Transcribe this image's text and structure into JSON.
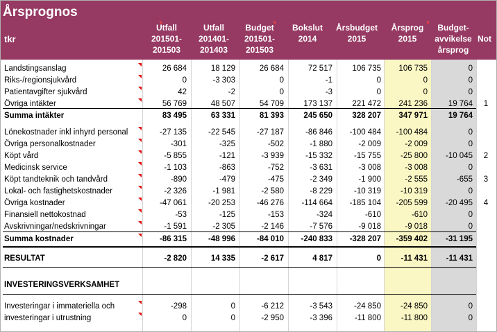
{
  "title": "Årsprognos",
  "unit_label": "tkr",
  "columns": [
    {
      "line1": "Utfall",
      "line2": "201501-",
      "line3": "201503"
    },
    {
      "line1": "Utfall",
      "line2": "201401-",
      "line3": "201403"
    },
    {
      "line1": "Budget",
      "line2": "201501-",
      "line3": "201503"
    },
    {
      "line1": "Bokslut",
      "line2": "2014",
      "line3": ""
    },
    {
      "line1": "Årsbudget",
      "line2": "2015",
      "line3": ""
    },
    {
      "line1": "Årsprog",
      "line2": "2015",
      "line3": ""
    },
    {
      "line1": "Budget-",
      "line2": "avvikelse",
      "line3": "årsprog"
    },
    {
      "line1": "Not",
      "line2": "",
      "line3": ""
    }
  ],
  "rows": [
    {
      "label": "Landstingsanslag",
      "values": [
        "26 684",
        "18 129",
        "26 684",
        "72 517",
        "106 735",
        "106 735",
        "0"
      ],
      "note": ""
    },
    {
      "label": "Riks-/regionsjukvård",
      "values": [
        "0",
        "-3 303",
        "0",
        "-1",
        "0",
        "0",
        "0"
      ],
      "note": ""
    },
    {
      "label": "Patientavgifter sjukvård",
      "values": [
        "42",
        "-2",
        "0",
        "-3",
        "0",
        "0",
        "0"
      ],
      "note": ""
    },
    {
      "label": "Övriga intäkter",
      "values": [
        "56 769",
        "48 507",
        "54 709",
        "173 137",
        "221 472",
        "241 236",
        "19 764"
      ],
      "note": "1"
    },
    {
      "label": "Summa intäkter",
      "values": [
        "83 495",
        "63 331",
        "81 393",
        "245 650",
        "328 207",
        "347 971",
        "19 764"
      ],
      "note": ""
    },
    {
      "label": "Lönekostnader inkl inhyrd personal",
      "values": [
        "-27 135",
        "-22 545",
        "-27 187",
        "-86 846",
        "-100 484",
        "-100 484",
        "0"
      ],
      "note": ""
    },
    {
      "label": "Övriga personalkostnader",
      "values": [
        "-301",
        "-325",
        "-502",
        "-1 880",
        "-2 009",
        "-2 009",
        "0"
      ],
      "note": ""
    },
    {
      "label": "Köpt vård",
      "values": [
        "-5 855",
        "-121",
        "-3 939",
        "-15 332",
        "-15 755",
        "-25 800",
        "-10 045"
      ],
      "note": "2"
    },
    {
      "label": "Medicinsk service",
      "values": [
        "-1 103",
        "-863",
        "-752",
        "-3 631",
        "-3 008",
        "-3 008",
        "0"
      ],
      "note": ""
    },
    {
      "label": "Köpt tandteknik och tandvård",
      "values": [
        "-890",
        "-479",
        "-475",
        "-2 349",
        "-1 900",
        "-2 555",
        "-655"
      ],
      "note": "3"
    },
    {
      "label": "Lokal- och fastighetskostnader",
      "values": [
        "-2 326",
        "-1 981",
        "-2 580",
        "-8 229",
        "-10 319",
        "-10 319",
        "0"
      ],
      "note": ""
    },
    {
      "label": "Övriga kostnader",
      "values": [
        "-47 061",
        "-20 253",
        "-46 276",
        "-114 664",
        "-185 104",
        "-205 599",
        "-20 495"
      ],
      "note": "4"
    },
    {
      "label": "Finansiell nettokostnad",
      "values": [
        "-53",
        "-125",
        "-153",
        "-324",
        "-610",
        "-610",
        "0"
      ],
      "note": ""
    },
    {
      "label": "Avskrivningar/nedskrivningar",
      "values": [
        "-1 591",
        "-2 305",
        "-2 146",
        "-7 576",
        "-9 018",
        "-9 018",
        "0"
      ],
      "note": ""
    },
    {
      "label": "Summa kostnader",
      "values": [
        "-86 315",
        "-48 996",
        "-84 010",
        "-240 833",
        "-328 207",
        "-359 402",
        "-31 195"
      ],
      "note": ""
    },
    {
      "label": "RESULTAT",
      "values": [
        "-2 820",
        "14 335",
        "-2 617",
        "4 817",
        "0",
        "-11 431",
        "-11 431"
      ],
      "note": ""
    },
    {
      "label": "INVESTERINGSVERKSAMHET",
      "values": [
        "",
        "",
        "",
        "",
        "",
        "",
        ""
      ],
      "note": ""
    },
    {
      "label": "Investeringar i immateriella och",
      "values": [
        "-298",
        "0",
        "-6 212",
        "-3 543",
        "-24 850",
        "-24 850",
        "0"
      ],
      "note": ""
    },
    {
      "label": "investeringar i utrustning",
      "values": [
        "0",
        "0",
        "-2 950",
        "-3 396",
        "-11 800",
        "-11 800",
        "0"
      ],
      "note": ""
    }
  ],
  "colors": {
    "header_bg": "#963963",
    "forecast_bg": "#fbf7c4",
    "deviation_bg": "#d9d9d9",
    "comment_marker": "#e00000"
  }
}
